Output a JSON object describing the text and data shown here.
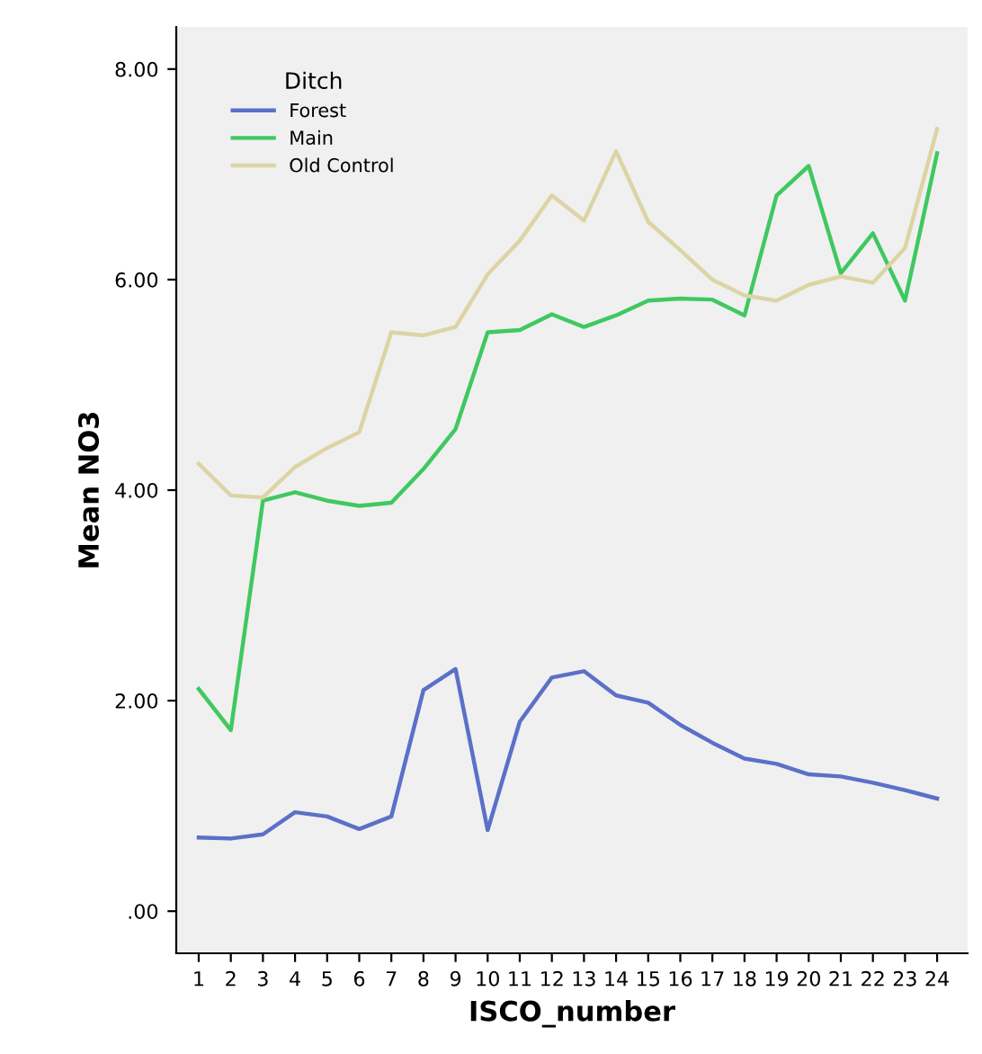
{
  "chart_data": {
    "type": "line",
    "xlabel": "ISCO_number",
    "ylabel": "Mean NO3",
    "legend_title": "Ditch",
    "legend": "top left",
    "grid": false,
    "marker": "none",
    "line_style": "solid",
    "categories": [
      "1",
      "2",
      "3",
      "4",
      "5",
      "6",
      "7",
      "8",
      "9",
      "10",
      "11",
      "12",
      "13",
      "14",
      "15",
      "16",
      "17",
      "18",
      "19",
      "20",
      "21",
      "22",
      "23",
      "24"
    ],
    "ylim": [
      -0.4,
      8.4
    ],
    "yticks": [
      {
        "value": 0,
        "label": ".00"
      },
      {
        "value": 2,
        "label": "2.00"
      },
      {
        "value": 4,
        "label": "4.00"
      },
      {
        "value": 6,
        "label": "6.00"
      },
      {
        "value": 8,
        "label": "8.00"
      }
    ],
    "series": [
      {
        "name": "Forest",
        "color": "#5b70c8",
        "values": [
          0.7,
          0.69,
          0.73,
          0.94,
          0.9,
          0.78,
          0.9,
          2.1,
          2.3,
          0.77,
          1.8,
          2.22,
          2.28,
          2.05,
          1.98,
          1.77,
          1.6,
          1.45,
          1.4,
          1.3,
          1.28,
          1.22,
          1.15,
          1.07
        ]
      },
      {
        "name": "Main",
        "color": "#40c860",
        "values": [
          2.11,
          1.72,
          3.9,
          3.98,
          3.9,
          3.85,
          3.88,
          4.2,
          4.58,
          5.5,
          5.52,
          5.67,
          5.55,
          5.66,
          5.8,
          5.82,
          5.81,
          5.66,
          6.8,
          7.08,
          6.06,
          6.44,
          5.8,
          7.2
        ]
      },
      {
        "name": "Old Control",
        "color": "#dcd4a4",
        "values": [
          4.25,
          3.95,
          3.93,
          4.22,
          4.4,
          4.55,
          5.5,
          5.47,
          5.55,
          6.05,
          6.37,
          6.8,
          6.56,
          7.22,
          6.55,
          6.28,
          6.0,
          5.85,
          5.8,
          5.95,
          6.03,
          5.97,
          6.3,
          7.43
        ]
      }
    ]
  }
}
